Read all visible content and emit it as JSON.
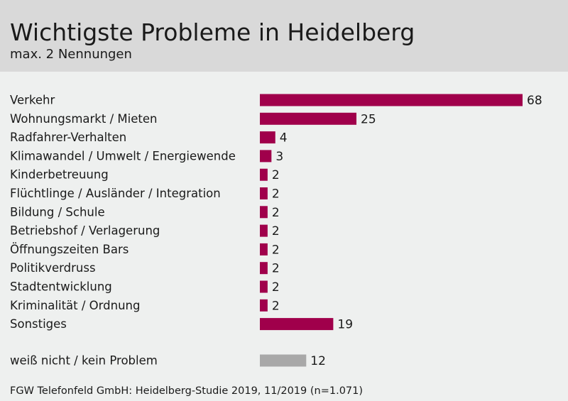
{
  "header": {
    "title": "Wichtigste Probleme in Heidelberg",
    "subtitle": "max. 2 Nennungen"
  },
  "footer": {
    "source": "FGW Telefonfeld GmbH: Heidelberg-Studie 2019, 11/2019 (n=1.071)"
  },
  "colors": {
    "bar": "#a0004b",
    "bar_other": "#a8a8a8",
    "header_bg": "#d9d9d9",
    "background": "#eef0ef"
  },
  "chart_data": {
    "type": "bar",
    "orientation": "horizontal",
    "title": "Wichtigste Probleme in Heidelberg",
    "subtitle": "max. 2 Nennungen",
    "grid": false,
    "categories": [
      "Verkehr",
      "Wohnungsmarkt / Mieten",
      "Radfahrer-Verhalten",
      "Klimawandel / Umwelt / Energiewende",
      "Kinderbetreuung",
      "Flüchtlinge / Ausländer / Integration",
      "Bildung / Schule",
      "Betriebshof / Verlagerung",
      "Öffnungszeiten Bars",
      "Politikverdruss",
      "Stadtentwicklung",
      "Kriminalität / Ordnung",
      "Sonstiges",
      "weiß nicht / kein Problem"
    ],
    "values": [
      68,
      25,
      4,
      3,
      2,
      2,
      2,
      2,
      2,
      2,
      2,
      2,
      19,
      12
    ],
    "xlim": [
      0,
      68
    ]
  }
}
